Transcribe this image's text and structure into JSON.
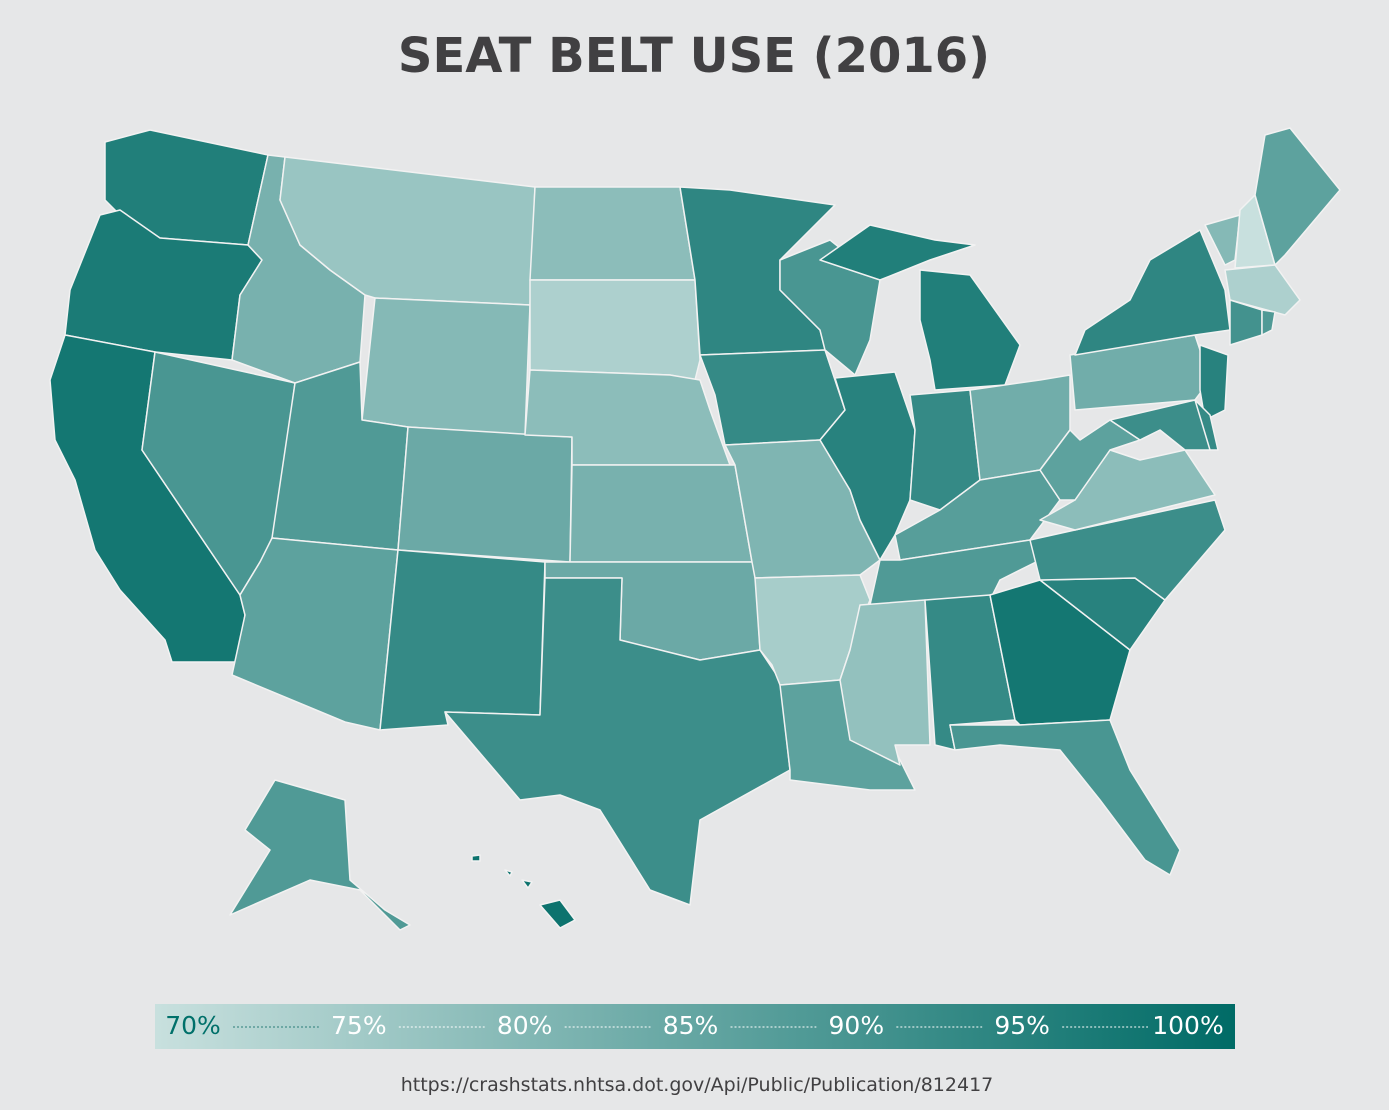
{
  "chart_data": {
    "type": "choropleth",
    "title": "SEAT BELT USE (2016)",
    "source": "https://crashstats.nhtsa.dot.gov/Api/Public/Publication/812417",
    "values": [
      95,
      96,
      97,
      89,
      82,
      77,
      80,
      88,
      84,
      86,
      92,
      79,
      74,
      79,
      82,
      84,
      91,
      93,
      92,
      81,
      75,
      86,
      89,
      94,
      95,
      92,
      83,
      87,
      88,
      78,
      92,
      97,
      89,
      94,
      91,
      79,
      86,
      83,
      93,
      80,
      70,
      86,
      74,
      90,
      88,
      94,
      92,
      91,
      88,
      98
    ],
    "colors": [
      "#c8e0de",
      "#006b66"
    ],
    "legend": {
      "lim": [
        70,
        100
      ],
      "ticks": [
        {
          "value": 70,
          "label": "70%"
        },
        {
          "value": 75,
          "label": "75%"
        },
        {
          "value": 80,
          "label": "80%"
        },
        {
          "value": 85,
          "label": "85%"
        },
        {
          "value": 90,
          "label": "90%"
        },
        {
          "value": 95,
          "label": "95%"
        },
        {
          "value": 100,
          "label": "100%"
        }
      ]
    }
  }
}
